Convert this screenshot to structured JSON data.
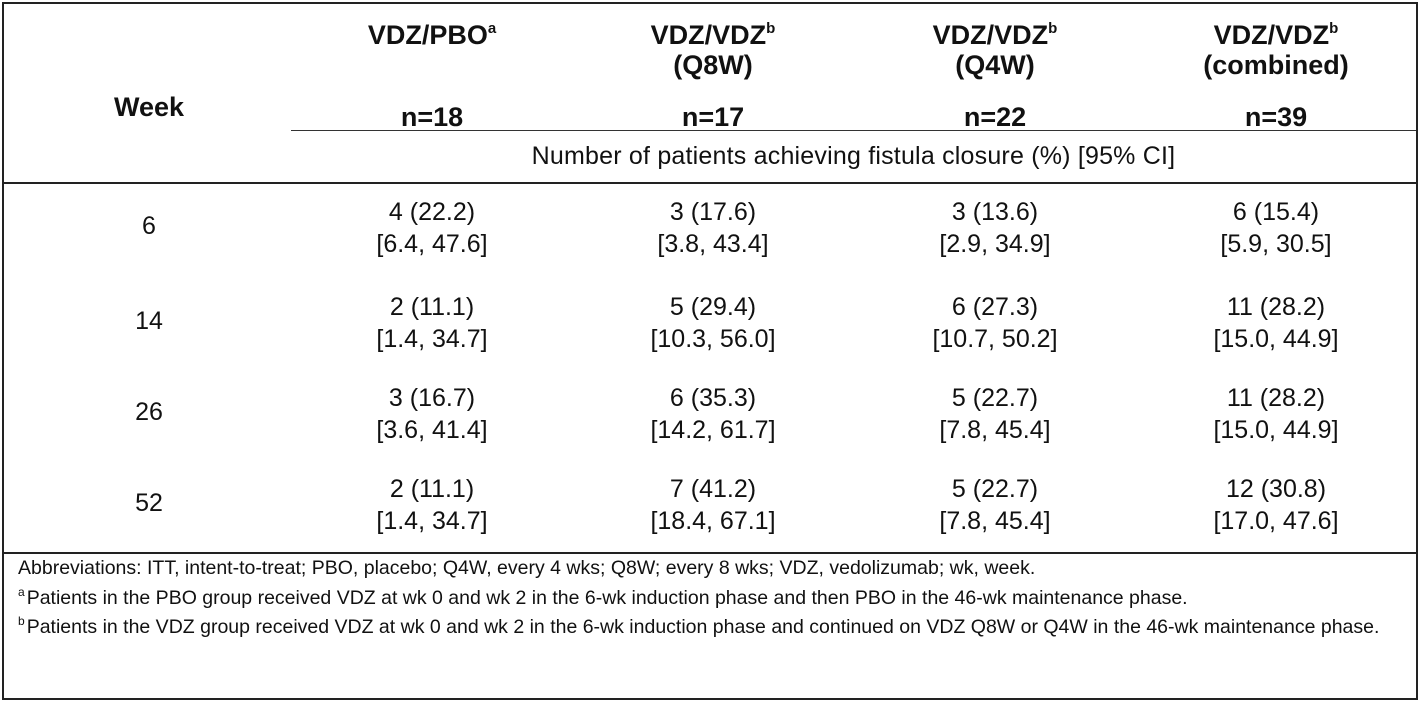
{
  "header": {
    "week_label": "Week",
    "columns": [
      {
        "title": "VDZ/PBO",
        "sup": "a",
        "sub": "",
        "n": "n=18"
      },
      {
        "title": "VDZ/VDZ",
        "sup": "b",
        "sub": "(Q8W)",
        "n": "n=17"
      },
      {
        "title": "VDZ/VDZ",
        "sup": "b",
        "sub": "(Q4W)",
        "n": "n=22"
      },
      {
        "title": "VDZ/VDZ",
        "sup": "b",
        "sub": "(combined)",
        "n": "n=39"
      }
    ],
    "subheading": "Number of patients achieving fistula closure (%) [95% CI]"
  },
  "rows": [
    {
      "week": "6",
      "cells": [
        [
          "4 (22.2)",
          "[6.4, 47.6]"
        ],
        [
          "3 (17.6)",
          "[3.8, 43.4]"
        ],
        [
          "3 (13.6)",
          "[2.9, 34.9]"
        ],
        [
          "6 (15.4)",
          "[5.9, 30.5]"
        ]
      ]
    },
    {
      "week": "14",
      "cells": [
        [
          "2 (11.1)",
          "[1.4, 34.7]"
        ],
        [
          "5 (29.4)",
          "[10.3, 56.0]"
        ],
        [
          "6 (27.3)",
          "[10.7, 50.2]"
        ],
        [
          "11 (28.2)",
          "[15.0, 44.9]"
        ]
      ]
    },
    {
      "week": "26",
      "cells": [
        [
          "3 (16.7)",
          "[3.6, 41.4]"
        ],
        [
          "6 (35.3)",
          "[14.2, 61.7]"
        ],
        [
          "5 (22.7)",
          "[7.8, 45.4]"
        ],
        [
          "11 (28.2)",
          "[15.0, 44.9]"
        ]
      ]
    },
    {
      "week": "52",
      "cells": [
        [
          "2 (11.1)",
          "[1.4, 34.7]"
        ],
        [
          "7 (41.2)",
          "[18.4, 67.1]"
        ],
        [
          "5 (22.7)",
          "[7.8, 45.4]"
        ],
        [
          "12 (30.8)",
          "[17.0, 47.6]"
        ]
      ]
    }
  ],
  "footnotes": {
    "abbreviations": "Abbreviations: ITT, intent-to-treat; PBO, placebo; Q4W, every 4 wks; Q8W; every 8 wks; VDZ, vedolizumab; wk, week.",
    "a_mark": "a",
    "a_text": "Patients in the PBO group received VDZ at wk 0 and wk 2 in the 6-wk induction phase and then PBO in the 46-wk maintenance phase.",
    "b_mark": "b",
    "b_text": "Patients in the VDZ group received VDZ at wk 0 and wk 2 in the 6-wk induction phase and continued on VDZ Q8W or Q4W in the 46-wk maintenance phase."
  }
}
